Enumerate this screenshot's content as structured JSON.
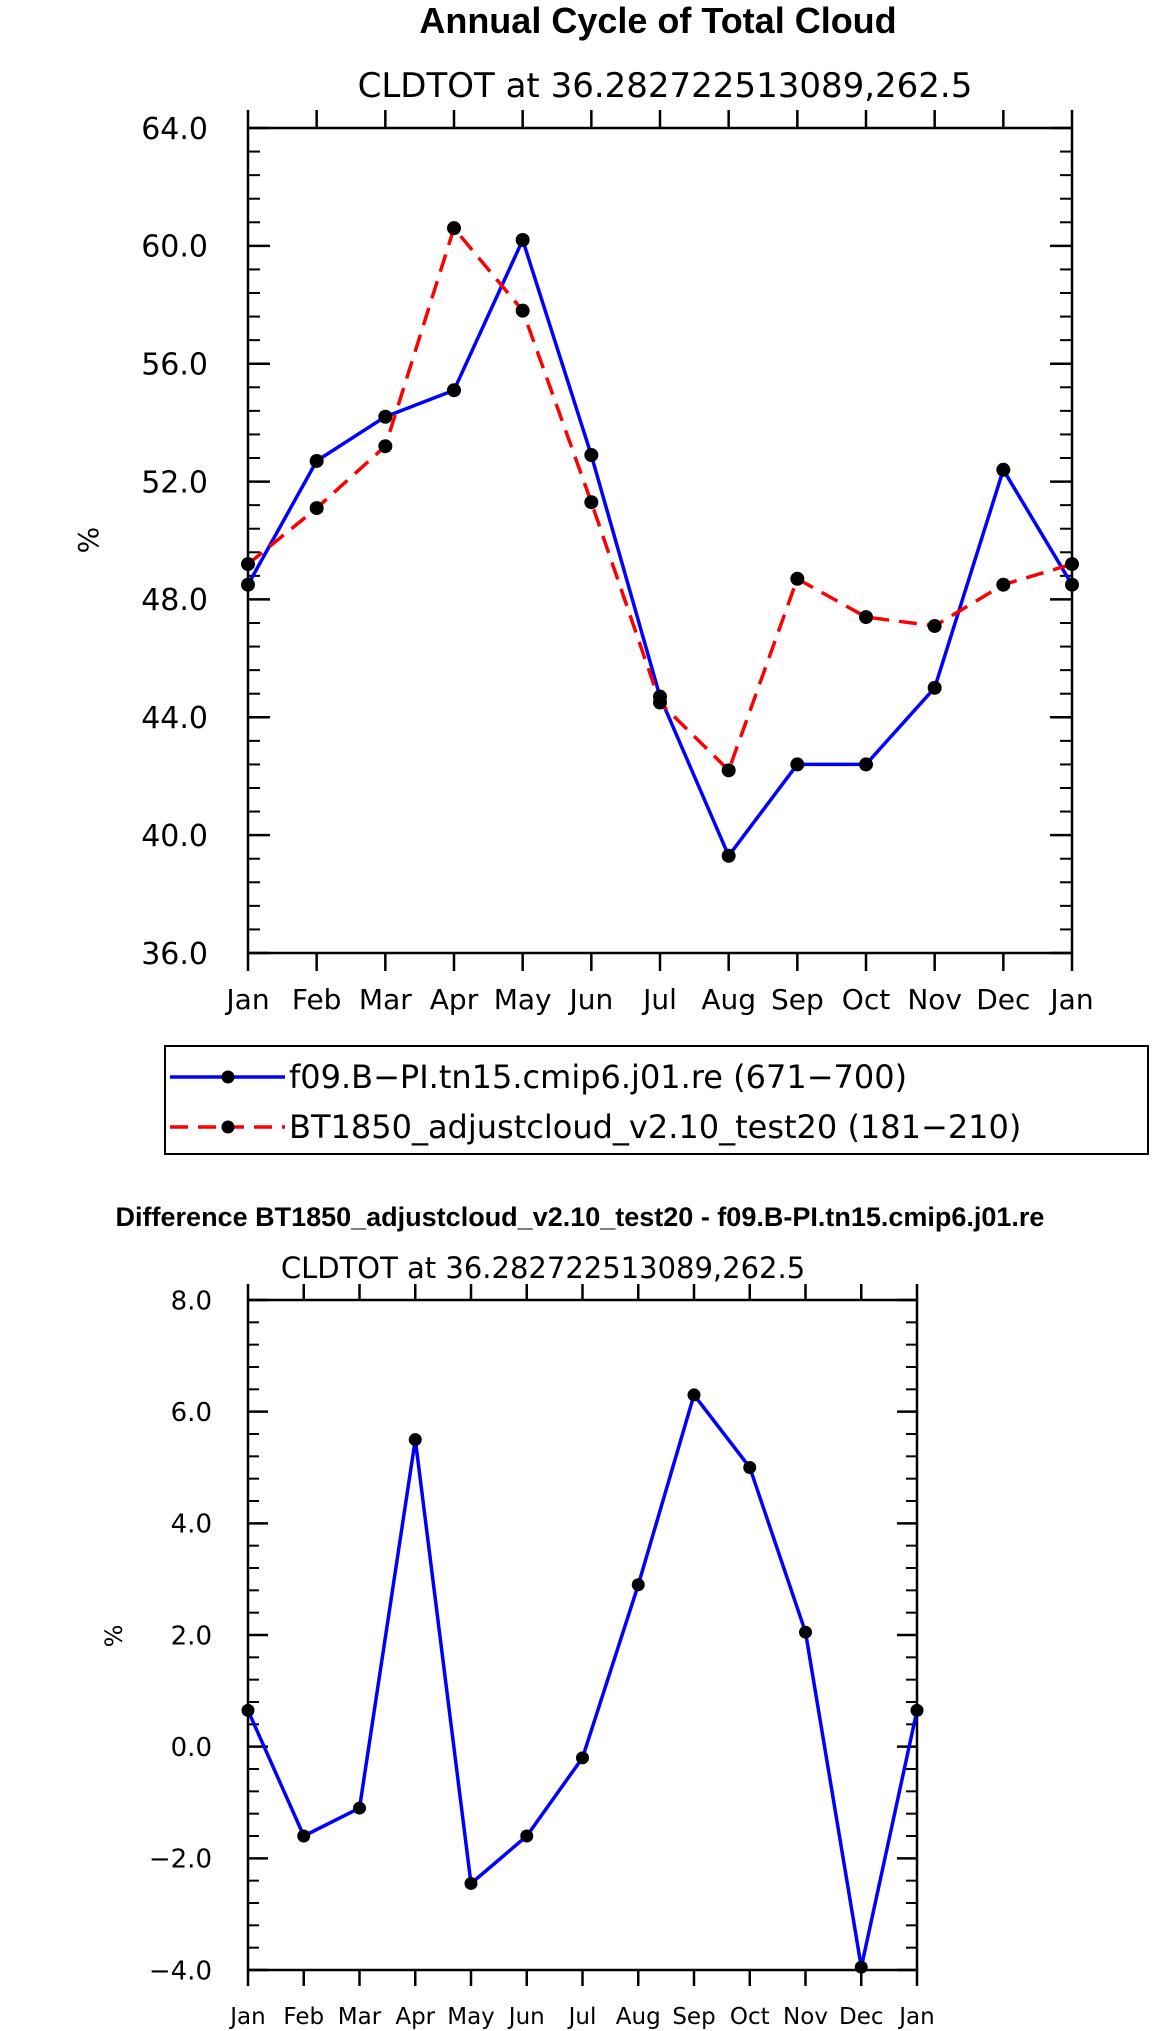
{
  "chart_data": [
    {
      "type": "line",
      "title": "Annual Cycle of Total Cloud",
      "subtitle": "CLDTOT at 36.282722513089,262.5",
      "ylabel": "%",
      "xlabel": "",
      "ylim": [
        36,
        64
      ],
      "yticks": [
        "36.0",
        "40.0",
        "44.0",
        "48.0",
        "52.0",
        "56.0",
        "60.0",
        "64.0"
      ],
      "categories": [
        "Jan",
        "Feb",
        "Mar",
        "Apr",
        "May",
        "Jun",
        "Jul",
        "Aug",
        "Sep",
        "Oct",
        "Nov",
        "Dec",
        "Jan"
      ],
      "series": [
        {
          "name": "f09.B-PI.tn15.cmip6.j01.re",
          "legend_label": "f09.B−PI.tn15.cmip6.j01.re (671−700)",
          "color": "#0000ff",
          "dash": "solid",
          "values": [
            48.5,
            52.7,
            54.2,
            55.1,
            60.2,
            52.9,
            44.7,
            39.3,
            42.4,
            42.4,
            45.0,
            52.4,
            48.5
          ]
        },
        {
          "name": "BT1850_adjustcloud_v2.10_test20",
          "legend_label": "BT1850_adjustcloud_v2.10_test20 (181−210)",
          "color": "#ff0000",
          "dash": "dashed",
          "values": [
            49.2,
            51.1,
            53.2,
            60.6,
            57.8,
            51.3,
            44.5,
            42.2,
            48.7,
            47.4,
            47.1,
            48.5,
            49.2
          ]
        }
      ],
      "legend_position": "bottom"
    },
    {
      "type": "line",
      "title": "Difference BT1850_adjustcloud_v2.10_test20 - f09.B-PI.tn15.cmip6.j01.re",
      "subtitle": "CLDTOT at 36.282722513089,262.5",
      "ylabel": "%",
      "xlabel": "",
      "ylim": [
        -4,
        8
      ],
      "yticks": [
        "−4.0",
        "−2.0",
        "0.0",
        "2.0",
        "4.0",
        "6.0",
        "8.0"
      ],
      "categories": [
        "Jan",
        "Feb",
        "Mar",
        "Apr",
        "May",
        "Jun",
        "Jul",
        "Aug",
        "Sep",
        "Oct",
        "Nov",
        "Dec",
        "Jan"
      ],
      "series": [
        {
          "name": "Difference",
          "color": "#0000ff",
          "dash": "solid",
          "values": [
            0.65,
            -1.6,
            -1.1,
            5.5,
            -2.45,
            -1.6,
            -0.2,
            2.9,
            6.3,
            5.0,
            2.05,
            -3.95,
            0.65
          ]
        }
      ]
    }
  ]
}
